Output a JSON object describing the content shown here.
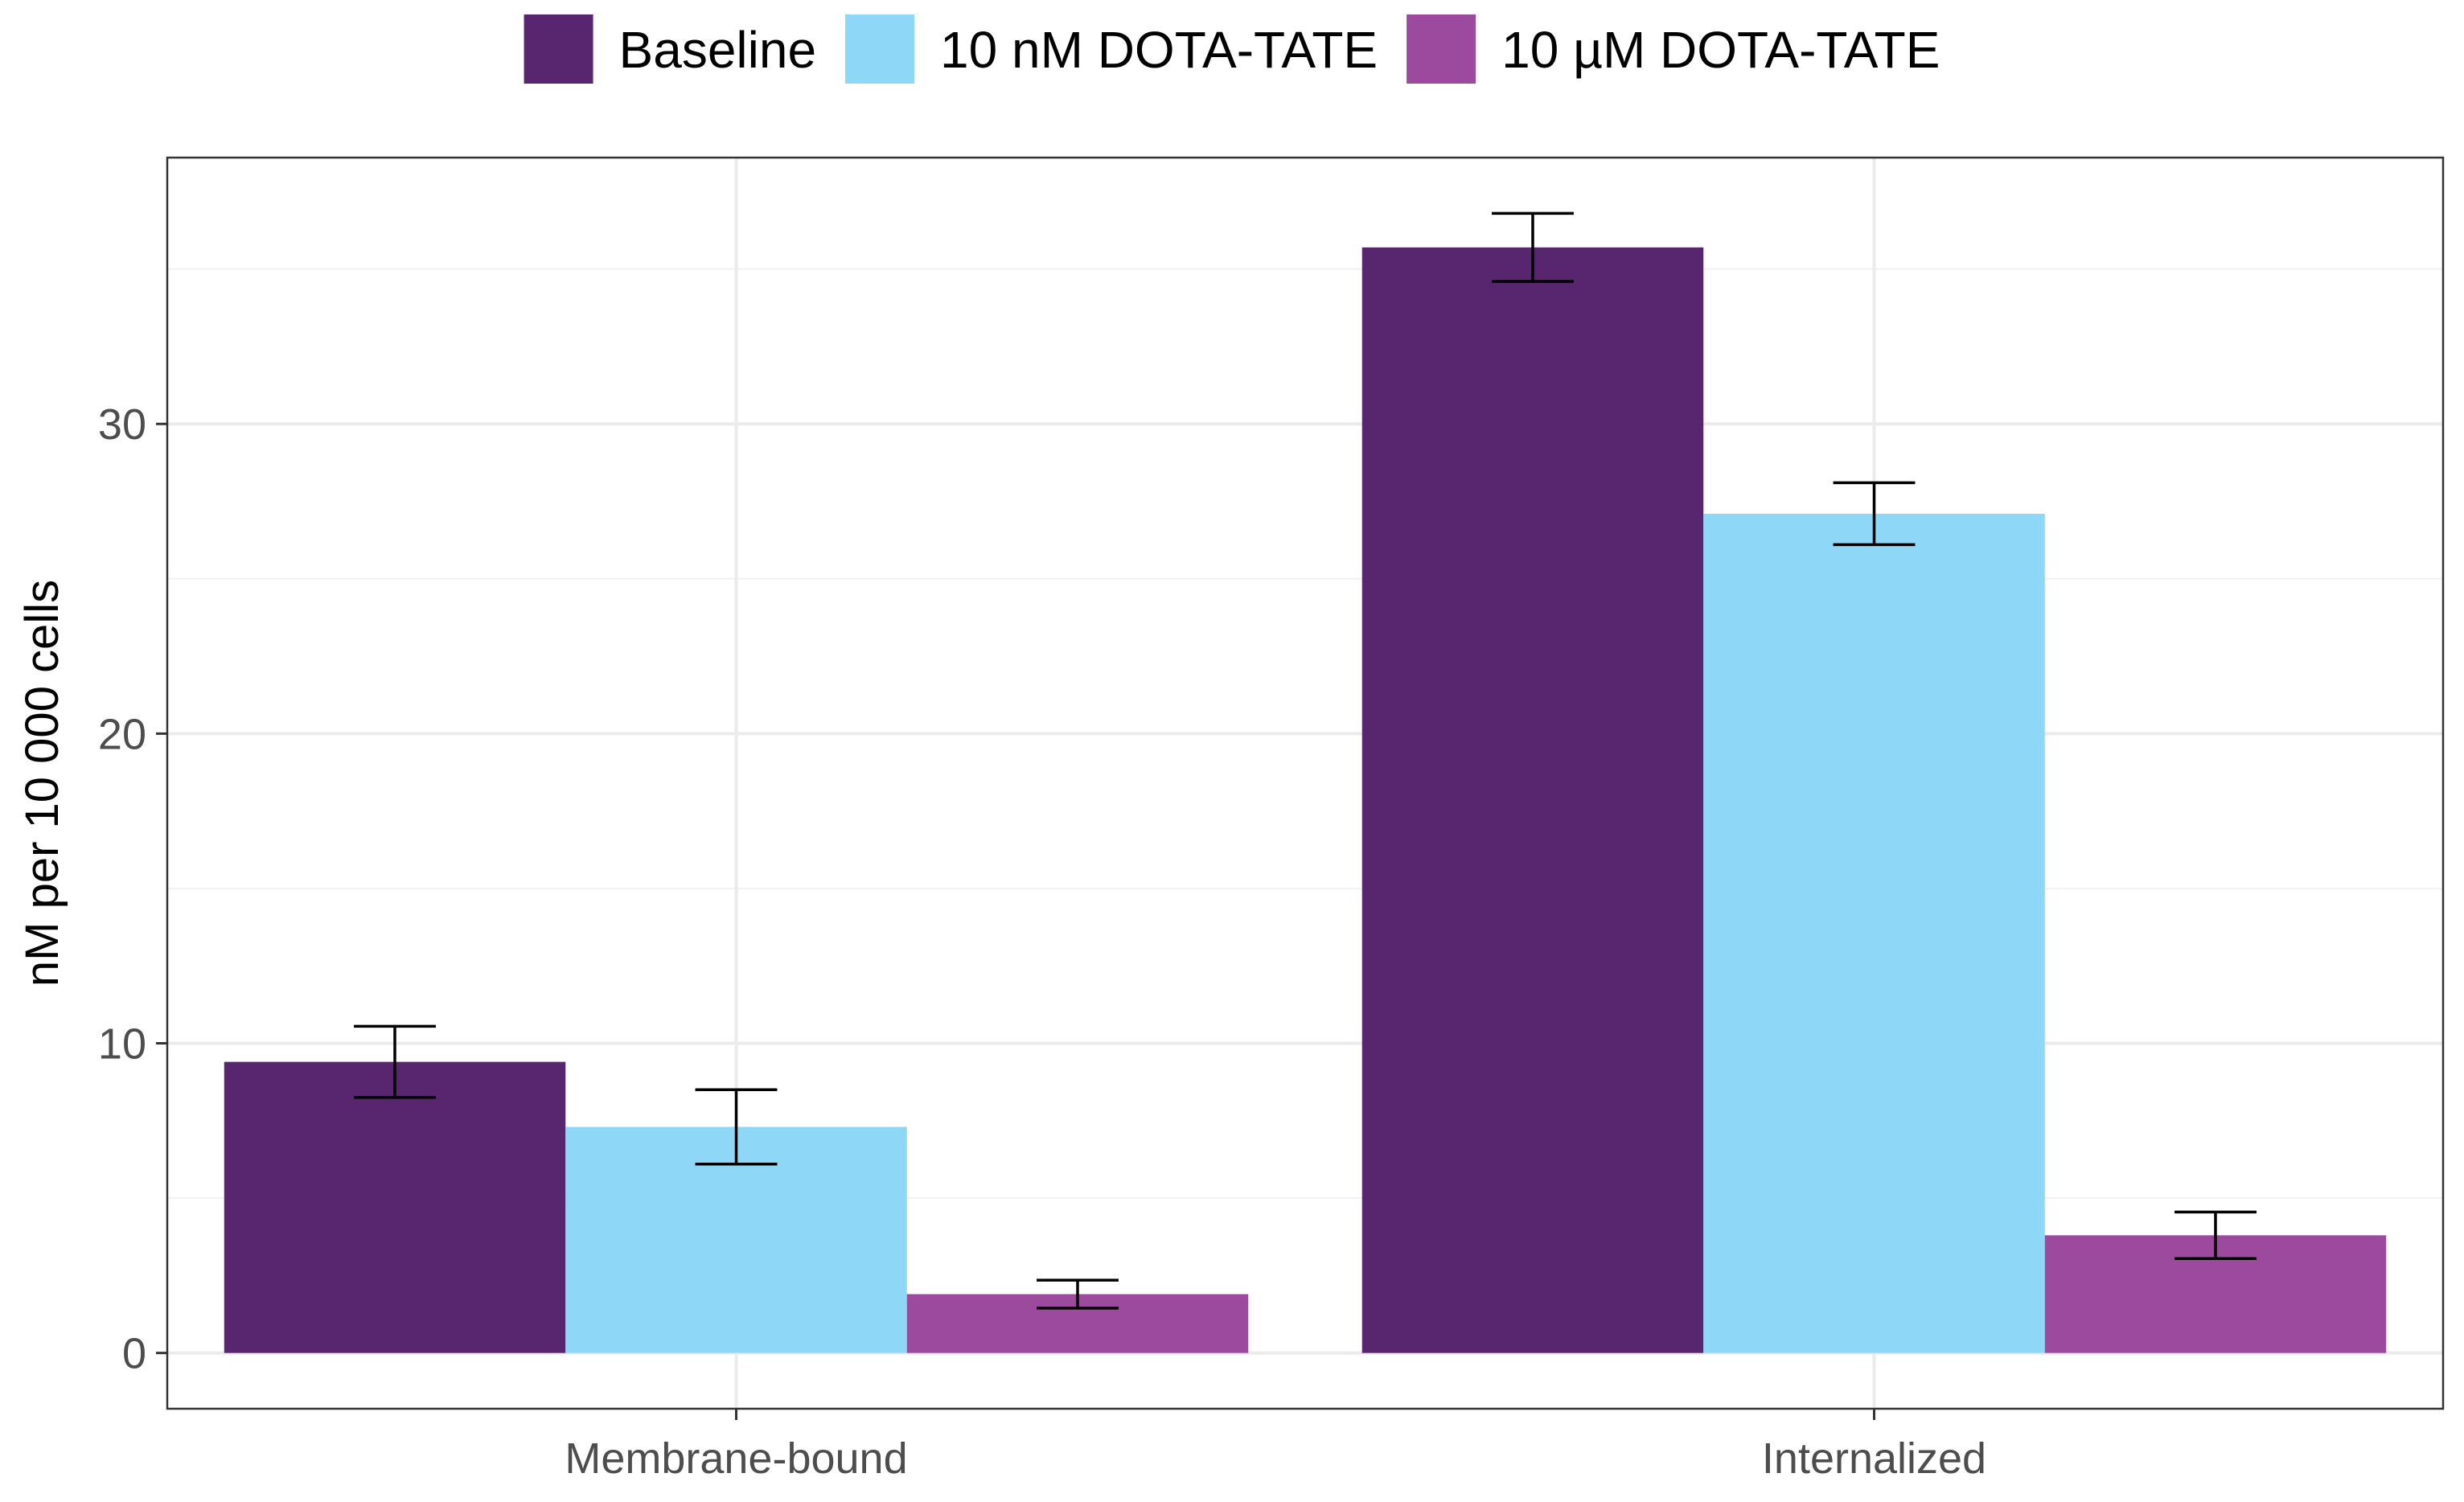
{
  "chart_data": {
    "type": "bar",
    "title": "",
    "xlabel": "",
    "ylabel": "nM per 10 000 cells",
    "categories": [
      "Membrane-bound",
      "Internalized"
    ],
    "series": [
      {
        "name": "Baseline",
        "color": "#57266e",
        "values": [
          9.4,
          35.7
        ],
        "error": [
          1.15,
          1.1
        ]
      },
      {
        "name": "10 nM DOTA-TATE",
        "color": "#8fd7f6",
        "values": [
          7.3,
          27.1
        ],
        "error": [
          1.2,
          1.0
        ]
      },
      {
        "name": "10 µM DOTA-TATE",
        "color": "#9b4a9d",
        "values": [
          1.9,
          3.8
        ],
        "error": [
          0.45,
          0.75
        ]
      }
    ],
    "ylim": [
      -1.8,
      38.6
    ],
    "yticks": [
      0,
      10,
      20,
      30
    ],
    "ytick_labels": [
      "0",
      "10",
      "20",
      "30"
    ],
    "grid": true,
    "legend_position": "top"
  }
}
